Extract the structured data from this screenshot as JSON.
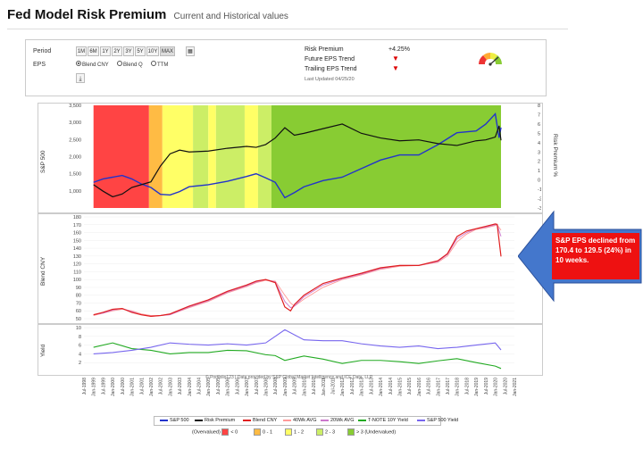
{
  "header": {
    "title": "Fed Model Risk Premium",
    "subtitle": "Current and Historical values"
  },
  "controls": {
    "period_label": "Period",
    "periods": [
      "1M",
      "6M",
      "1Y",
      "2Y",
      "3Y",
      "5Y",
      "10Y",
      "MAX"
    ],
    "active_period": "MAX",
    "eps_label": "EPS",
    "eps_options": [
      "Blend CNY",
      "Blend Q",
      "TTM"
    ],
    "eps_selected": "Blend CNY"
  },
  "stats": {
    "risk_premium_label": "Risk Premium",
    "risk_premium_value": "+4.25%",
    "future_eps_label": "Future EPS Trend",
    "trailing_eps_label": "Trailing EPS Trend",
    "last_updated": "Last Updated 04/25/20"
  },
  "axes": {
    "sp500_title": "S&P 500",
    "risk_premium_title": "Risk Premium %",
    "sp_ticks": [
      "3,500",
      "3,000",
      "2,500",
      "2,000",
      "1,500",
      "1,000"
    ],
    "rp_ticks": [
      "8",
      "7",
      "6",
      "5",
      "4",
      "3",
      "2",
      "1",
      "0",
      "-1",
      "-2",
      "-3"
    ],
    "blend_title": "Blend CNY",
    "blend_ticks": [
      "180",
      "170",
      "160",
      "150",
      "140",
      "130",
      "120",
      "110",
      "100",
      "90",
      "80",
      "70",
      "60",
      "50"
    ],
    "yield_title": "Yield",
    "yield_ticks": [
      "10",
      "8",
      "6",
      "4",
      "2"
    ],
    "x_ticks": [
      "Jul-1998",
      "Jan-1999",
      "Jul-1999",
      "Jan-2000",
      "Jul-2000",
      "Jan-2001",
      "Jul-2001",
      "Jan-2002",
      "Jul-2002",
      "Jan-2003",
      "Jul-2003",
      "Jan-2004",
      "Jul-2004",
      "Jan-2005",
      "Jul-2005",
      "Jan-2006",
      "Jul-2006",
      "Jan-2007",
      "Jul-2007",
      "Jan-2008",
      "Jul-2008",
      "Jan-2009",
      "Jul-2009",
      "Jan-2010",
      "Jul-2010",
      "Jan-2011",
      "Jul-2011",
      "Jan-2012",
      "Jul-2012",
      "Jan-2013",
      "Jul-2013",
      "Jan-2014",
      "Jul-2014",
      "Jan-2015",
      "Jul-2015",
      "Jan-2016",
      "Jul-2016",
      "Jan-2017",
      "Jul-2017",
      "Jan-2018",
      "Jul-2018",
      "Jan-2019",
      "Jul-2019",
      "Jan-2020",
      "Jul-2020",
      "Jan-2021"
    ]
  },
  "credit": "© Portfolio123 | Data provided by S&P Global Market Intelligence and ICE Data, LLP",
  "legend": {
    "series": [
      {
        "name": "S&P 500",
        "color": "#2233cc"
      },
      {
        "name": "Risk Premium",
        "color": "#111111"
      },
      {
        "name": "Blend CNY",
        "color": "#e02020"
      },
      {
        "name": "40Wk AVG",
        "color": "#ff9999"
      },
      {
        "name": "20Wk AVG",
        "color": "#cc77cc"
      },
      {
        "name": "T-NOTE 10Y Yield",
        "color": "#22aa22"
      },
      {
        "name": "S&P 500 Yield",
        "color": "#7766ee"
      }
    ],
    "zones": [
      {
        "prefix": "(Overvalued)",
        "label": "< 0",
        "color": "#ff4444"
      },
      {
        "label": "0 - 1",
        "color": "#ffbb44"
      },
      {
        "label": "1 - 2",
        "color": "#ffff66"
      },
      {
        "label": "2 - 3",
        "color": "#ccee66"
      },
      {
        "label": "> 3",
        "suffix": "(Undervalued)",
        "color": "#88cc33"
      }
    ]
  },
  "callout": {
    "text": "S&P EPS declined from 170.4 to 129.5 (24%) in 10 weeks."
  },
  "chart_data": [
    {
      "type": "line",
      "title": "",
      "ylabel": "S&P 500",
      "y2label": "Risk Premium %",
      "ylim": [
        500,
        3500
      ],
      "y2lim": [
        -3,
        8
      ],
      "x": [
        1999.0,
        1999.5,
        2000.0,
        2000.5,
        2001.0,
        2001.5,
        2002.0,
        2002.5,
        2003.0,
        2003.5,
        2004.0,
        2005.0,
        2006.0,
        2007.0,
        2007.5,
        2008.0,
        2008.5,
        2009.0,
        2009.5,
        2010.0,
        2011.0,
        2012.0,
        2013.0,
        2014.0,
        2015.0,
        2016.0,
        2017.0,
        2018.0,
        2019.0,
        2019.5,
        2020.0,
        2020.2,
        2020.3
      ],
      "series": [
        {
          "name": "S&P 500",
          "values": [
            1250,
            1350,
            1400,
            1450,
            1350,
            1200,
            1100,
            900,
            880,
            980,
            1120,
            1180,
            1280,
            1420,
            1500,
            1380,
            1250,
            800,
            950,
            1120,
            1300,
            1400,
            1650,
            1900,
            2050,
            2050,
            2350,
            2700,
            2750,
            2950,
            3250,
            2550,
            2850
          ]
        },
        {
          "name": "Risk Premium",
          "values": [
            -0.5,
            -1.2,
            -1.8,
            -1.5,
            -0.8,
            -0.5,
            -0.2,
            1.5,
            2.8,
            3.2,
            3.0,
            3.1,
            3.4,
            3.6,
            3.5,
            3.8,
            4.5,
            5.6,
            4.8,
            5.0,
            5.5,
            6.0,
            5.0,
            4.5,
            4.2,
            4.3,
            3.9,
            3.7,
            4.2,
            4.3,
            4.6,
            5.8,
            4.25
          ]
        }
      ]
    },
    {
      "type": "line",
      "title": "",
      "ylabel": "Blend CNY",
      "ylim": [
        50,
        180
      ],
      "x": [
        1999.0,
        1999.5,
        2000.0,
        2000.5,
        2001.0,
        2001.5,
        2002.0,
        2002.5,
        2003.0,
        2004.0,
        2005.0,
        2006.0,
        2007.0,
        2007.5,
        2008.0,
        2008.5,
        2009.0,
        2009.3,
        2009.5,
        2010.0,
        2011.0,
        2012.0,
        2013.0,
        2014.0,
        2015.0,
        2016.0,
        2017.0,
        2017.5,
        2018.0,
        2018.5,
        2019.0,
        2019.5,
        2020.0,
        2020.1,
        2020.3
      ],
      "series": [
        {
          "name": "Blend CNY",
          "values": [
            55,
            58,
            62,
            63,
            58,
            55,
            53,
            54,
            56,
            66,
            74,
            85,
            93,
            98,
            100,
            96,
            65,
            60,
            68,
            80,
            95,
            102,
            108,
            115,
            118,
            118,
            124,
            133,
            155,
            162,
            165,
            168,
            171,
            170.4,
            129.5
          ]
        },
        {
          "name": "40Wk AVG",
          "values": [
            54,
            57,
            60,
            62,
            60,
            56,
            54,
            54,
            55,
            64,
            72,
            83,
            91,
            96,
            99,
            98,
            80,
            70,
            66,
            75,
            90,
            100,
            106,
            113,
            117,
            118,
            122,
            130,
            148,
            158,
            164,
            166,
            169,
            170,
            163
          ]
        },
        {
          "name": "20Wk AVG",
          "values": [
            55,
            57,
            61,
            63,
            59,
            55,
            53,
            54,
            55,
            65,
            73,
            84,
            92,
            97,
            100,
            97,
            72,
            64,
            66,
            78,
            93,
            101,
            107,
            114,
            118,
            118,
            123,
            132,
            152,
            160,
            165,
            167,
            170,
            170,
            155
          ]
        }
      ]
    },
    {
      "type": "line",
      "title": "",
      "ylabel": "Yield",
      "ylim": [
        0,
        10
      ],
      "x": [
        1999.0,
        2000.0,
        2001.0,
        2002.0,
        2003.0,
        2004.0,
        2005.0,
        2006.0,
        2007.0,
        2008.0,
        2008.5,
        2009.0,
        2010.0,
        2011.0,
        2012.0,
        2013.0,
        2014.0,
        2015.0,
        2016.0,
        2017.0,
        2018.0,
        2019.0,
        2020.0,
        2020.3
      ],
      "series": [
        {
          "name": "T-NOTE 10Y Yield",
          "values": [
            5.5,
            6.5,
            5.2,
            4.8,
            4.0,
            4.3,
            4.3,
            4.8,
            4.7,
            3.8,
            3.6,
            2.5,
            3.5,
            2.8,
            1.8,
            2.5,
            2.5,
            2.2,
            1.8,
            2.4,
            2.9,
            2.0,
            1.2,
            0.65
          ]
        },
        {
          "name": "S&P 500 Yield",
          "values": [
            4.0,
            4.3,
            4.8,
            5.5,
            6.5,
            6.2,
            6.0,
            6.3,
            6.0,
            6.5,
            8.0,
            9.5,
            7.2,
            7.0,
            7.0,
            6.3,
            5.8,
            5.5,
            5.8,
            5.2,
            5.5,
            6.0,
            6.5,
            4.9
          ]
        }
      ]
    }
  ]
}
